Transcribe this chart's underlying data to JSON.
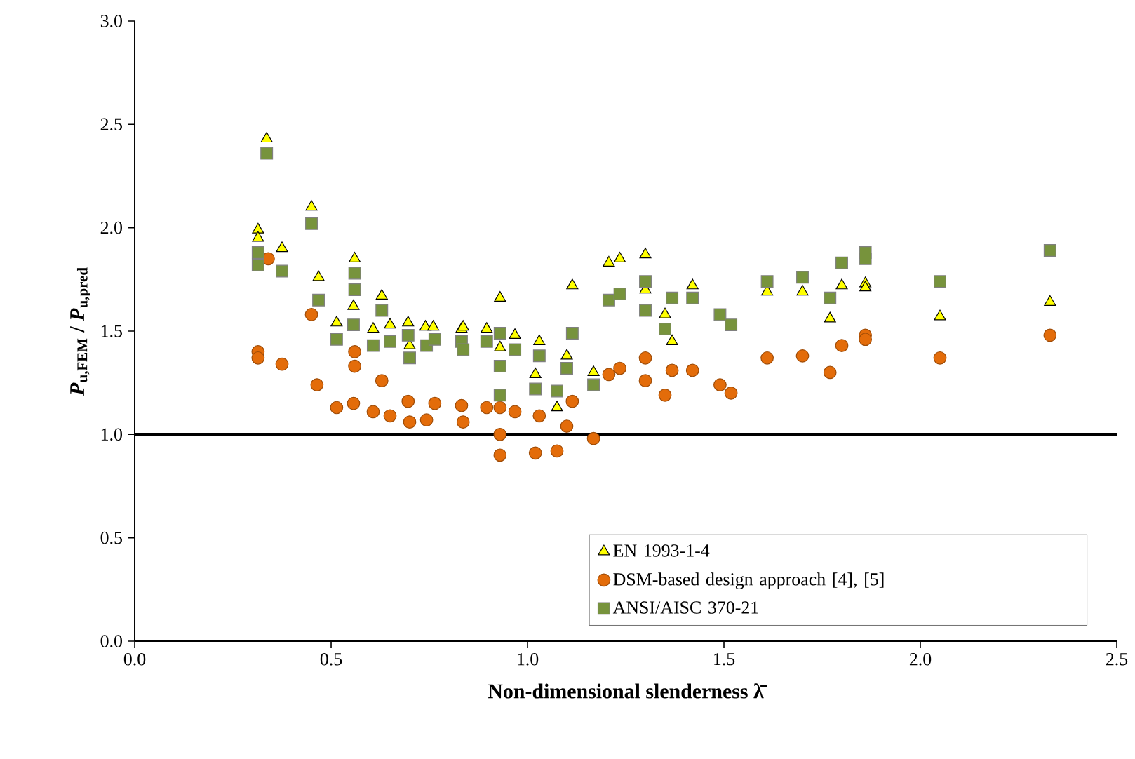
{
  "chart_data": {
    "type": "scatter",
    "xlabel": "Non-dimensional slenderness λ̄",
    "ylabel": "*P*$_{u,FEM}$ / *P*$_{u,pred}$",
    "xlim": [
      0,
      2.5
    ],
    "ylim": [
      0,
      3.0
    ],
    "xticks": [
      {
        "value": 0,
        "label": "0.0"
      },
      {
        "value": 0.5,
        "label": "0.5"
      },
      {
        "value": 1,
        "label": "1.0"
      },
      {
        "value": 1.5,
        "label": "1.5"
      },
      {
        "value": 2,
        "label": "2.0"
      },
      {
        "value": 2.5,
        "label": "2.5"
      }
    ],
    "yticks": [
      {
        "value": 0,
        "label": "0.0"
      },
      {
        "value": 0.5,
        "label": "0.5"
      },
      {
        "value": 1,
        "label": "1.0"
      },
      {
        "value": 1.5,
        "label": "1.5"
      },
      {
        "value": 2,
        "label": "2.0"
      },
      {
        "value": 2.5,
        "label": "2.5"
      },
      {
        "value": 3,
        "label": "3.0"
      }
    ],
    "grid": false,
    "legend": "bottom right",
    "ref_lines": [
      {
        "axis": "y",
        "value": 1,
        "color": "#000000"
      }
    ],
    "series": [
      {
        "name": "EN 1993-1-4",
        "color": "#ffff00",
        "marker": "triangle",
        "x": [
          0.336,
          0.314,
          0.314,
          0.375,
          0.45,
          0.468,
          0.56,
          0.557,
          0.514,
          0.607,
          0.629,
          0.65,
          0.696,
          0.74,
          0.76,
          0.832,
          0.7,
          0.836,
          0.896,
          0.93,
          0.93,
          0.968,
          1.02,
          1.03,
          1.075,
          1.1,
          1.114,
          1.168,
          1.207,
          1.235,
          1.3,
          1.3,
          1.35,
          1.368,
          1.42,
          1.61,
          1.7,
          1.8,
          1.77,
          1.86,
          1.86,
          2.05,
          2.33
        ],
        "values": [
          2.43,
          1.99,
          1.95,
          1.9,
          2.1,
          1.76,
          1.85,
          1.62,
          1.54,
          1.51,
          1.67,
          1.53,
          1.54,
          1.52,
          1.52,
          1.51,
          1.43,
          1.52,
          1.51,
          1.66,
          1.42,
          1.48,
          1.29,
          1.45,
          1.13,
          1.38,
          1.72,
          1.3,
          1.83,
          1.85,
          1.87,
          1.7,
          1.58,
          1.45,
          1.72,
          1.69,
          1.69,
          1.72,
          1.56,
          1.73,
          1.71,
          1.57,
          1.64
        ]
      },
      {
        "name": "DSM-based design approach [4], [5]",
        "color": "#e36c0a",
        "marker": "circle",
        "x": [
          0.314,
          0.314,
          0.34,
          0.375,
          0.45,
          0.464,
          0.514,
          0.56,
          0.56,
          0.557,
          0.607,
          0.629,
          0.65,
          0.696,
          0.7,
          0.743,
          0.764,
          0.832,
          0.836,
          0.896,
          0.93,
          0.93,
          0.93,
          0.968,
          1.03,
          1.02,
          1.075,
          1.1,
          1.114,
          1.168,
          1.207,
          1.235,
          1.3,
          1.3,
          1.35,
          1.368,
          1.42,
          1.49,
          1.518,
          1.61,
          1.7,
          1.77,
          1.8,
          1.86,
          1.86,
          2.05,
          2.33
        ],
        "values": [
          1.4,
          1.37,
          1.85,
          1.34,
          1.58,
          1.24,
          1.13,
          1.4,
          1.33,
          1.15,
          1.11,
          1.26,
          1.09,
          1.16,
          1.06,
          1.07,
          1.15,
          1.14,
          1.06,
          1.13,
          1.13,
          1.0,
          0.9,
          1.11,
          1.09,
          0.91,
          0.92,
          1.04,
          1.16,
          0.98,
          1.29,
          1.32,
          1.37,
          1.26,
          1.19,
          1.31,
          1.31,
          1.24,
          1.2,
          1.37,
          1.38,
          1.3,
          1.43,
          1.48,
          1.46,
          1.37,
          1.48
        ]
      },
      {
        "name": "ANSI/AISC 370-21",
        "color": "#77933c",
        "marker": "square",
        "x": [
          0.336,
          0.314,
          0.314,
          0.375,
          0.45,
          0.468,
          0.514,
          0.56,
          0.56,
          0.557,
          0.607,
          0.629,
          0.65,
          0.696,
          0.7,
          0.743,
          0.764,
          0.832,
          0.836,
          0.896,
          0.93,
          0.93,
          0.93,
          0.968,
          1.02,
          1.03,
          1.075,
          1.1,
          1.114,
          1.168,
          1.207,
          1.235,
          1.3,
          1.3,
          1.35,
          1.368,
          1.42,
          1.49,
          1.518,
          1.61,
          1.7,
          1.77,
          1.8,
          1.86,
          1.86,
          2.05,
          2.33
        ],
        "values": [
          2.36,
          1.88,
          1.82,
          1.79,
          2.02,
          1.65,
          1.46,
          1.78,
          1.7,
          1.53,
          1.43,
          1.6,
          1.45,
          1.48,
          1.37,
          1.43,
          1.46,
          1.45,
          1.41,
          1.45,
          1.49,
          1.33,
          1.19,
          1.41,
          1.22,
          1.38,
          1.21,
          1.32,
          1.49,
          1.24,
          1.65,
          1.68,
          1.74,
          1.6,
          1.51,
          1.66,
          1.66,
          1.58,
          1.53,
          1.74,
          1.76,
          1.66,
          1.83,
          1.88,
          1.85,
          1.74,
          1.89
        ]
      }
    ]
  }
}
